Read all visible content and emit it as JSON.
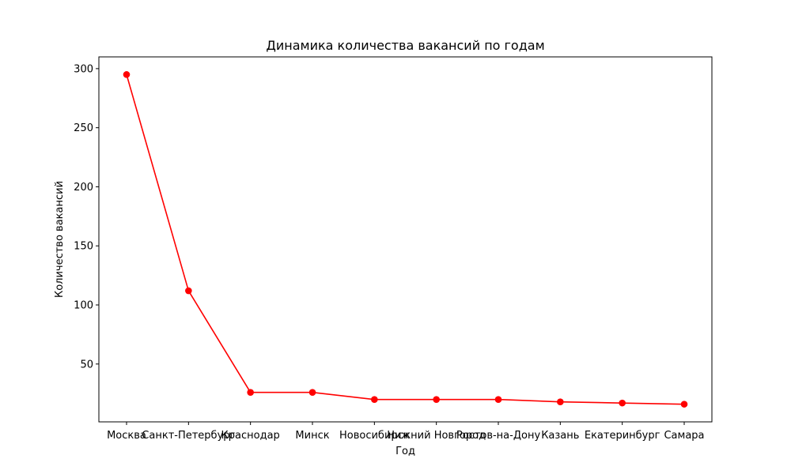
{
  "chart_data": {
    "type": "line",
    "title": "Динамика количества вакансий по годам",
    "xlabel": "Год",
    "ylabel": "Количество вакансий",
    "categories": [
      "Москва",
      "Санкт-Петербург",
      "Краснодар",
      "Минск",
      "Новосибирск",
      "Нижний Новгород",
      "Ростов-на-Дону",
      "Казань",
      "Екатеринбург",
      "Самара"
    ],
    "series": [
      {
        "values": [
          295,
          112,
          26,
          26,
          20,
          20,
          20,
          18,
          17,
          16
        ]
      }
    ],
    "ylim": [
      1.05,
      309.95
    ],
    "yticks": [
      50,
      100,
      150,
      200,
      250,
      300
    ],
    "ytick_labels": [
      "50",
      "100",
      "150",
      "200",
      "250",
      "300"
    ],
    "color": "#ff0000",
    "marker": "circle",
    "grid": false,
    "legend": "none"
  }
}
